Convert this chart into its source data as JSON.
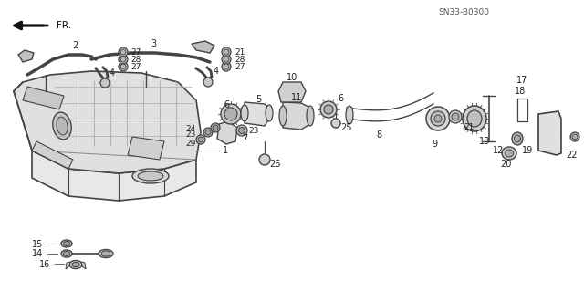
{
  "diagram_code": "SN33-B0300",
  "bg_color": "#ffffff",
  "lc": "#444444",
  "tc": "#222222",
  "figsize": [
    6.4,
    3.19
  ],
  "dpi": 100
}
